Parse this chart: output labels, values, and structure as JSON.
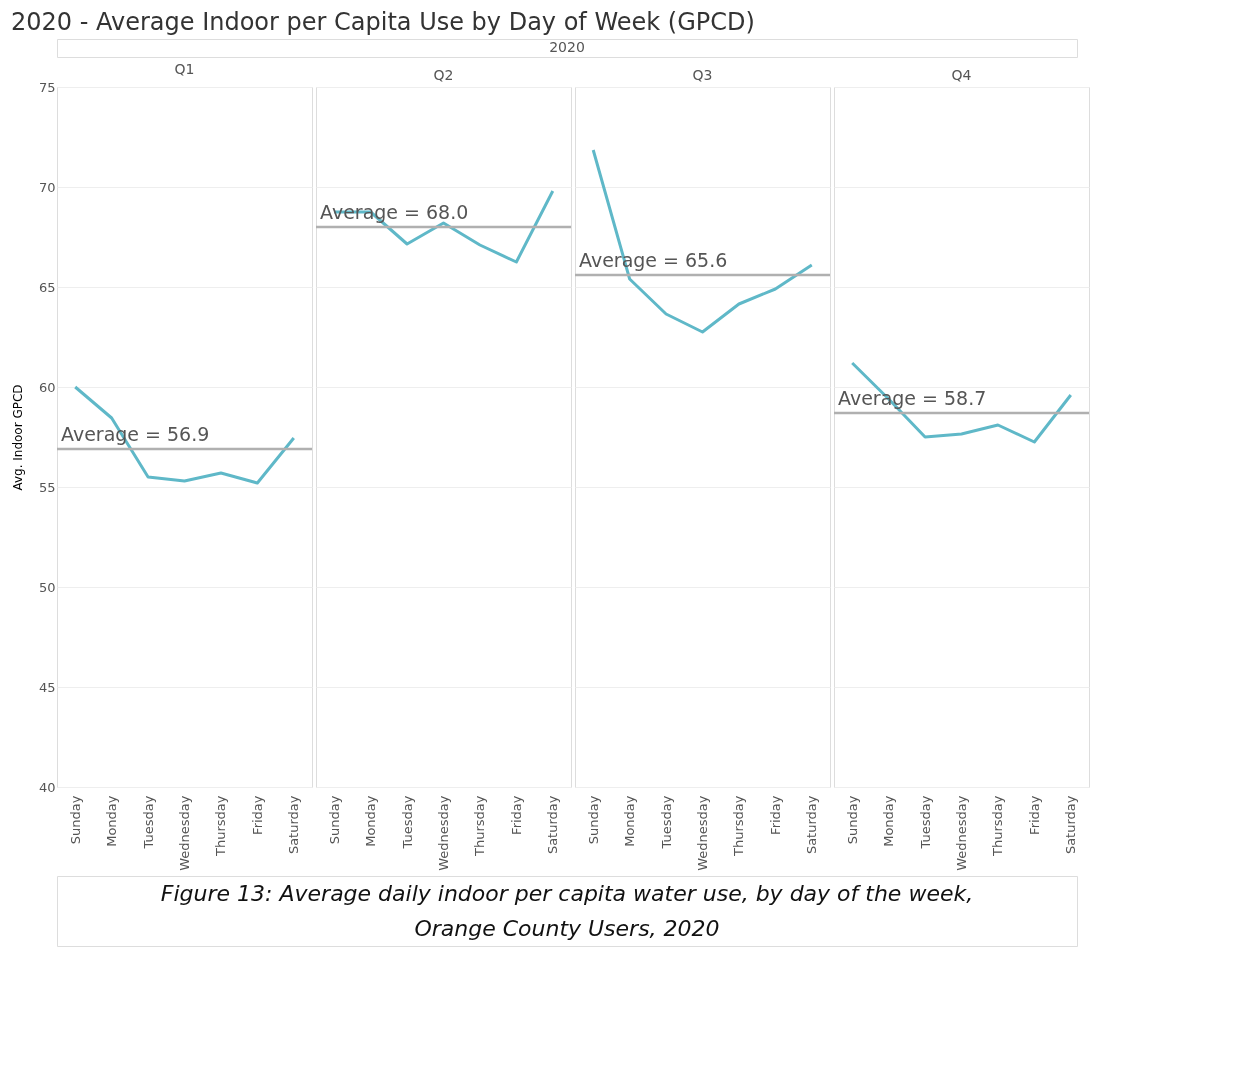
{
  "chart_data": [
    {
      "type": "line",
      "title": "2020 - Average Indoor per Capita Use by Day of Week (GPCD)",
      "subtitle": "Q1",
      "ylabel": "Avg. Indoor GPCD",
      "annotations": [
        "2020",
        "Figure 13: Average daily indoor per capita water use, by day of the week,",
        "Orange County Users, 2020"
      ],
      "categories": [
        "Sunday",
        "Monday",
        "Tuesday",
        "Wednesday",
        "Thursday",
        "Friday",
        "Saturday"
      ],
      "values": [
        60.0,
        58.45,
        55.5,
        55.3,
        55.7,
        55.2,
        57.45
      ],
      "color": "#5fb8c8",
      "ylim": [
        40,
        75
      ],
      "yticks": [
        40,
        45,
        50,
        55,
        60,
        65,
        70,
        75
      ],
      "grid": "y",
      "ref_lines": [
        {
          "axis": "y",
          "value": 56.9,
          "label": "Average = 56.9",
          "color": "#b0b0b0"
        }
      ]
    },
    {
      "type": "line",
      "subtitle": "Q2",
      "categories": [
        "Sunday",
        "Monday",
        "Tuesday",
        "Wednesday",
        "Thursday",
        "Friday",
        "Saturday"
      ],
      "values": [
        68.75,
        68.75,
        67.15,
        68.2,
        67.1,
        66.25,
        69.8
      ],
      "color": "#5fb8c8",
      "ylim": [
        40,
        75
      ],
      "yticks": [
        40,
        45,
        50,
        55,
        60,
        65,
        70,
        75
      ],
      "grid": "y",
      "tick_labels": "x",
      "ref_lines": [
        {
          "axis": "y",
          "value": 68.0,
          "label": "Average = 68.0",
          "color": "#b0b0b0"
        }
      ]
    },
    {
      "type": "line",
      "subtitle": "Q3",
      "categories": [
        "Sunday",
        "Monday",
        "Tuesday",
        "Wednesday",
        "Thursday",
        "Friday",
        "Saturday"
      ],
      "values": [
        71.85,
        65.4,
        63.65,
        62.75,
        64.15,
        64.9,
        66.1
      ],
      "color": "#5fb8c8",
      "ylim": [
        40,
        75
      ],
      "yticks": [
        40,
        45,
        50,
        55,
        60,
        65,
        70,
        75
      ],
      "grid": "y",
      "tick_labels": "x",
      "ref_lines": [
        {
          "axis": "y",
          "value": 65.6,
          "label": "Average = 65.6",
          "color": "#b0b0b0"
        }
      ]
    },
    {
      "type": "line",
      "subtitle": "Q4",
      "categories": [
        "Sunday",
        "Monday",
        "Tuesday",
        "Wednesday",
        "Thursday",
        "Friday",
        "Saturday"
      ],
      "values": [
        61.2,
        59.4,
        57.5,
        57.65,
        58.1,
        57.25,
        59.6
      ],
      "color": "#5fb8c8",
      "ylim": [
        40,
        75
      ],
      "yticks": [
        40,
        45,
        50,
        55,
        60,
        65,
        70,
        75
      ],
      "grid": "y",
      "tick_labels": "x",
      "ref_lines": [
        {
          "axis": "y",
          "value": 58.7,
          "label": "Average = 58.7",
          "color": "#b0b0b0"
        }
      ]
    }
  ]
}
